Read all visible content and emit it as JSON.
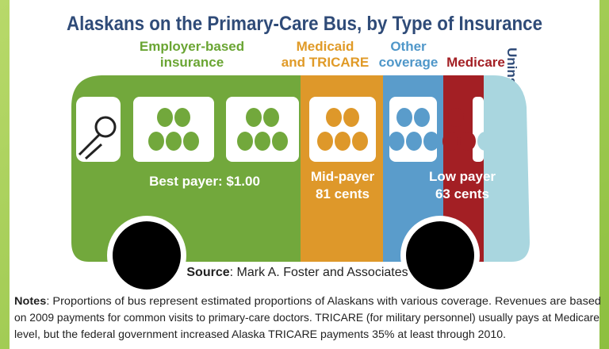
{
  "title": "Alaskans on the Primary-Care Bus, by Type of Insurance",
  "segments": [
    {
      "label": [
        "Employer-based",
        "insurance"
      ]
    },
    {
      "label": [
        "Medicaid",
        "and TRICARE"
      ]
    },
    {
      "label": [
        "Other",
        "coverage"
      ]
    },
    {
      "label": [
        "Medicare"
      ]
    },
    {
      "label": [
        "Uninsured"
      ]
    }
  ],
  "payers": {
    "best": [
      "Best payer: $1.00"
    ],
    "mid": [
      "Mid-payer",
      "81 cents"
    ],
    "low": [
      "Low payer",
      "63 cents"
    ]
  },
  "source": {
    "label": "Source",
    "text": ": Mark A. Foster and Associates"
  },
  "notes": {
    "label": "Notes",
    "lines": [
      ": Proportions of bus represent estimated proportions of Alaskans with various coverage. Revenues are based",
      "on 2009 payments for common  visits to primary-care doctors.  TRICARE (for military personnel) usually pays at Medicare",
      "level, but the federal government increased Alaska TRICARE payments 35% at least through 2010."
    ]
  }
}
